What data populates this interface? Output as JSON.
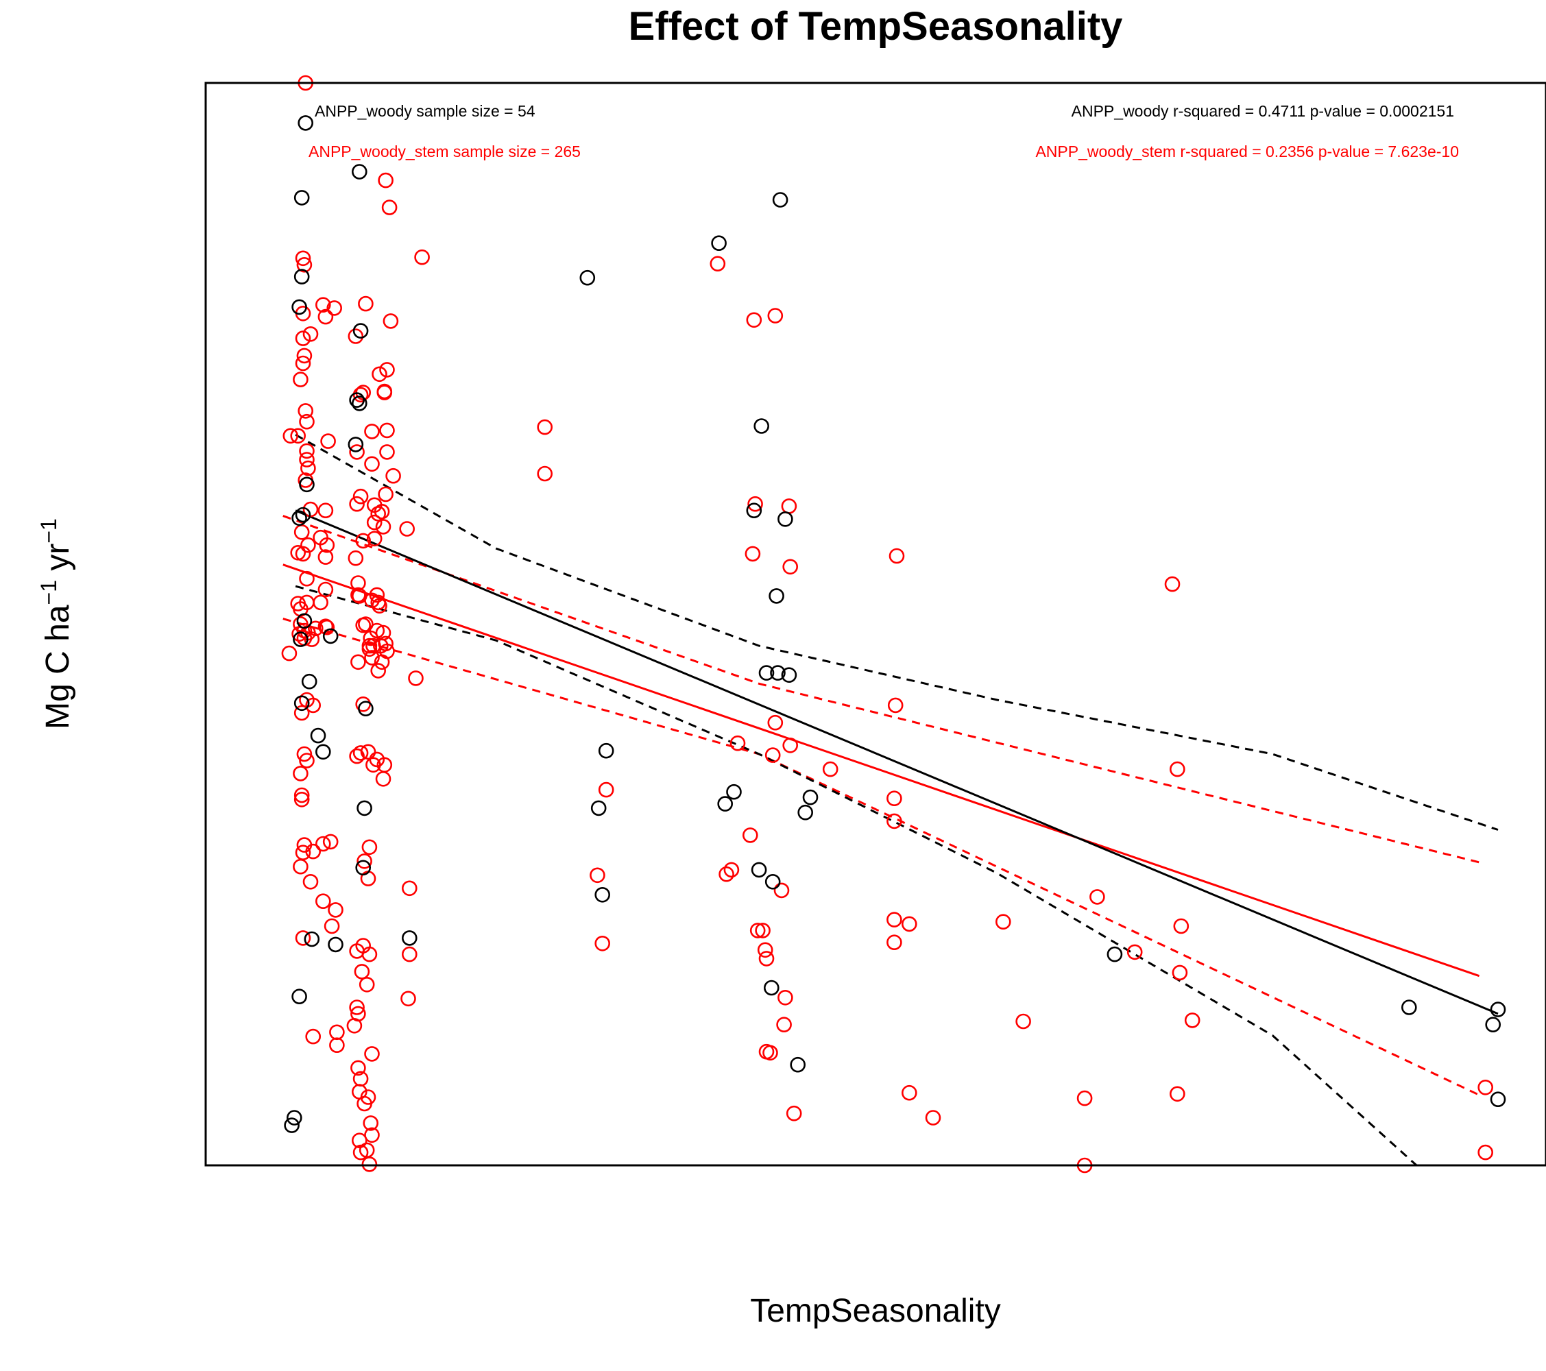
{
  "chart_data": {
    "type": "scatter",
    "title": "Effect of TempSeasonality",
    "xlabel": "TempSeasonality",
    "ylabel": {
      "main": "Mg C ha",
      "sup1": "−1",
      "mid": " yr",
      "sup2": "−1"
    },
    "x_range": [
      0,
      1
    ],
    "y_range": [
      0,
      1
    ],
    "axes_ticks_shown": false,
    "grid": false,
    "annotations": {
      "woody_sample": "ANPP_woody sample size = 54",
      "stem_sample": "ANPP_woody_stem sample size = 265",
      "woody_stats": "ANPP_woody r-squared =  0.4711 p-value =  0.0002151",
      "stem_stats": "ANPP_woody_stem r-squared =  0.2356 p-value =  7.623e-10"
    },
    "series": [
      {
        "name": "ANPP_woody",
        "color": "#000000",
        "n": 54,
        "r_squared": 0.4711,
        "p_value": 0.0002151,
        "fit_line": [
          [
            0.04,
            0.605
          ],
          [
            1.0,
            0.14
          ]
        ],
        "ci_upper": [
          [
            0.04,
            0.675
          ],
          [
            0.2,
            0.57
          ],
          [
            0.41,
            0.48
          ],
          [
            0.6,
            0.43
          ],
          [
            0.82,
            0.38
          ],
          [
            1.0,
            0.31
          ]
        ],
        "ci_lower": [
          [
            0.04,
            0.535
          ],
          [
            0.2,
            0.485
          ],
          [
            0.41,
            0.38
          ],
          [
            0.6,
            0.27
          ],
          [
            0.82,
            0.12
          ],
          [
            0.935,
            0.0
          ]
        ],
        "points": [
          [
            0.048,
            0.963
          ],
          [
            0.045,
            0.894
          ],
          [
            0.045,
            0.821
          ],
          [
            0.043,
            0.793
          ],
          [
            0.091,
            0.918
          ],
          [
            0.092,
            0.771
          ],
          [
            0.089,
            0.707
          ],
          [
            0.091,
            0.704
          ],
          [
            0.088,
            0.666
          ],
          [
            0.049,
            0.629
          ],
          [
            0.046,
            0.601
          ],
          [
            0.043,
            0.598
          ],
          [
            0.047,
            0.503
          ],
          [
            0.044,
            0.486
          ],
          [
            0.051,
            0.447
          ],
          [
            0.045,
            0.427
          ],
          [
            0.058,
            0.397
          ],
          [
            0.062,
            0.382
          ],
          [
            0.068,
            0.489
          ],
          [
            0.096,
            0.422
          ],
          [
            0.095,
            0.33
          ],
          [
            0.094,
            0.275
          ],
          [
            0.053,
            0.209
          ],
          [
            0.072,
            0.204
          ],
          [
            0.043,
            0.156
          ],
          [
            0.039,
            0.044
          ],
          [
            0.037,
            0.037
          ],
          [
            0.131,
            0.21
          ],
          [
            0.273,
            0.82
          ],
          [
            0.288,
            0.383
          ],
          [
            0.282,
            0.33
          ],
          [
            0.285,
            0.25
          ],
          [
            0.378,
            0.852
          ],
          [
            0.427,
            0.892
          ],
          [
            0.412,
            0.683
          ],
          [
            0.406,
            0.605
          ],
          [
            0.431,
            0.597
          ],
          [
            0.424,
            0.526
          ],
          [
            0.416,
            0.455
          ],
          [
            0.425,
            0.455
          ],
          [
            0.434,
            0.453
          ],
          [
            0.383,
            0.334
          ],
          [
            0.39,
            0.345
          ],
          [
            0.41,
            0.273
          ],
          [
            0.421,
            0.262
          ],
          [
            0.42,
            0.164
          ],
          [
            0.441,
            0.093
          ],
          [
            0.447,
            0.326
          ],
          [
            0.451,
            0.34
          ],
          [
            0.694,
            0.195
          ],
          [
            0.929,
            0.146
          ],
          [
            1.0,
            0.144
          ],
          [
            0.996,
            0.13
          ],
          [
            1.0,
            0.061
          ]
        ]
      },
      {
        "name": "ANPP_woody_stem",
        "color": "#ff0000",
        "n": 265,
        "r_squared": 0.2356,
        "p_value": 7.623e-10,
        "fit_line": [
          [
            0.03,
            0.555
          ],
          [
            0.985,
            0.175
          ]
        ],
        "ci_upper": [
          [
            0.03,
            0.6
          ],
          [
            0.41,
            0.445
          ],
          [
            0.985,
            0.28
          ]
        ],
        "ci_lower": [
          [
            0.03,
            0.505
          ],
          [
            0.41,
            0.38
          ],
          [
            0.985,
            0.065
          ]
        ],
        "points": [
          [
            0.048,
            1.0
          ],
          [
            0.112,
            0.91
          ],
          [
            0.115,
            0.885
          ],
          [
            0.141,
            0.839
          ],
          [
            0.046,
            0.838
          ],
          [
            0.047,
            0.832
          ],
          [
            0.062,
            0.795
          ],
          [
            0.071,
            0.792
          ],
          [
            0.096,
            0.796
          ],
          [
            0.046,
            0.787
          ],
          [
            0.064,
            0.784
          ],
          [
            0.046,
            0.764
          ],
          [
            0.052,
            0.768
          ],
          [
            0.088,
            0.766
          ],
          [
            0.047,
            0.748
          ],
          [
            0.046,
            0.741
          ],
          [
            0.107,
            0.731
          ],
          [
            0.044,
            0.726
          ],
          [
            0.094,
            0.714
          ],
          [
            0.092,
            0.712
          ],
          [
            0.048,
            0.697
          ],
          [
            0.049,
            0.687
          ],
          [
            0.036,
            0.674
          ],
          [
            0.042,
            0.674
          ],
          [
            0.066,
            0.669
          ],
          [
            0.089,
            0.659
          ],
          [
            0.101,
            0.648
          ],
          [
            0.049,
            0.66
          ],
          [
            0.049,
            0.652
          ],
          [
            0.05,
            0.644
          ],
          [
            0.048,
            0.633
          ],
          [
            0.092,
            0.618
          ],
          [
            0.103,
            0.61
          ],
          [
            0.052,
            0.606
          ],
          [
            0.064,
            0.605
          ],
          [
            0.089,
            0.611
          ],
          [
            0.103,
            0.594
          ],
          [
            0.129,
            0.588
          ],
          [
            0.045,
            0.585
          ],
          [
            0.06,
            0.58
          ],
          [
            0.05,
            0.573
          ],
          [
            0.065,
            0.573
          ],
          [
            0.094,
            0.577
          ],
          [
            0.103,
            0.579
          ],
          [
            0.042,
            0.566
          ],
          [
            0.046,
            0.565
          ],
          [
            0.064,
            0.562
          ],
          [
            0.088,
            0.561
          ],
          [
            0.049,
            0.542
          ],
          [
            0.09,
            0.538
          ],
          [
            0.09,
            0.527
          ],
          [
            0.064,
            0.532
          ],
          [
            0.042,
            0.519
          ],
          [
            0.049,
            0.52
          ],
          [
            0.06,
            0.52
          ],
          [
            0.044,
            0.514
          ],
          [
            0.101,
            0.522
          ],
          [
            0.091,
            0.526
          ],
          [
            0.106,
            0.52
          ],
          [
            0.044,
            0.5
          ],
          [
            0.047,
            0.494
          ],
          [
            0.05,
            0.492
          ],
          [
            0.056,
            0.496
          ],
          [
            0.064,
            0.498
          ],
          [
            0.065,
            0.497
          ],
          [
            0.094,
            0.499
          ],
          [
            0.1,
            0.487
          ],
          [
            0.043,
            0.491
          ],
          [
            0.047,
            0.487
          ],
          [
            0.053,
            0.486
          ],
          [
            0.101,
            0.469
          ],
          [
            0.096,
            0.5
          ],
          [
            0.099,
            0.48
          ],
          [
            0.099,
            0.477
          ],
          [
            0.09,
            0.465
          ],
          [
            0.102,
            0.48
          ],
          [
            0.108,
            0.48
          ],
          [
            0.035,
            0.473
          ],
          [
            0.136,
            0.45
          ],
          [
            0.049,
            0.43
          ],
          [
            0.054,
            0.425
          ],
          [
            0.045,
            0.418
          ],
          [
            0.094,
            0.426
          ],
          [
            0.089,
            0.378
          ],
          [
            0.098,
            0.382
          ],
          [
            0.102,
            0.37
          ],
          [
            0.047,
            0.38
          ],
          [
            0.049,
            0.374
          ],
          [
            0.044,
            0.362
          ],
          [
            0.045,
            0.342
          ],
          [
            0.045,
            0.338
          ],
          [
            0.046,
            0.289
          ],
          [
            0.047,
            0.296
          ],
          [
            0.054,
            0.29
          ],
          [
            0.044,
            0.276
          ],
          [
            0.062,
            0.297
          ],
          [
            0.068,
            0.299
          ],
          [
            0.052,
            0.262
          ],
          [
            0.095,
            0.281
          ],
          [
            0.099,
            0.294
          ],
          [
            0.098,
            0.265
          ],
          [
            0.062,
            0.244
          ],
          [
            0.072,
            0.236
          ],
          [
            0.069,
            0.221
          ],
          [
            0.046,
            0.21
          ],
          [
            0.094,
            0.203
          ],
          [
            0.089,
            0.198
          ],
          [
            0.099,
            0.195
          ],
          [
            0.093,
            0.179
          ],
          [
            0.097,
            0.167
          ],
          [
            0.089,
            0.146
          ],
          [
            0.09,
            0.14
          ],
          [
            0.087,
            0.129
          ],
          [
            0.054,
            0.119
          ],
          [
            0.073,
            0.123
          ],
          [
            0.073,
            0.111
          ],
          [
            0.101,
            0.103
          ],
          [
            0.09,
            0.09
          ],
          [
            0.092,
            0.08
          ],
          [
            0.095,
            0.057
          ],
          [
            0.098,
            0.063
          ],
          [
            0.091,
            0.068
          ],
          [
            0.1,
            0.039
          ],
          [
            0.101,
            0.028
          ],
          [
            0.091,
            0.023
          ],
          [
            0.092,
            0.012
          ],
          [
            0.097,
            0.014
          ],
          [
            0.099,
            0.001
          ],
          [
            0.131,
            0.256
          ],
          [
            0.131,
            0.195
          ],
          [
            0.13,
            0.154
          ],
          [
            0.113,
            0.735
          ],
          [
            0.111,
            0.715
          ],
          [
            0.111,
            0.714
          ],
          [
            0.116,
            0.78
          ],
          [
            0.113,
            0.679
          ],
          [
            0.113,
            0.659
          ],
          [
            0.118,
            0.637
          ],
          [
            0.101,
            0.678
          ],
          [
            0.112,
            0.62
          ],
          [
            0.109,
            0.604
          ],
          [
            0.106,
            0.602
          ],
          [
            0.11,
            0.59
          ],
          [
            0.105,
            0.527
          ],
          [
            0.107,
            0.517
          ],
          [
            0.105,
            0.494
          ],
          [
            0.11,
            0.492
          ],
          [
            0.109,
            0.465
          ],
          [
            0.112,
            0.482
          ],
          [
            0.113,
            0.475
          ],
          [
            0.106,
            0.457
          ],
          [
            0.092,
            0.381
          ],
          [
            0.105,
            0.375
          ],
          [
            0.111,
            0.37
          ],
          [
            0.11,
            0.357
          ],
          [
            0.239,
            0.682
          ],
          [
            0.239,
            0.639
          ],
          [
            0.288,
            0.347
          ],
          [
            0.281,
            0.268
          ],
          [
            0.285,
            0.205
          ],
          [
            0.377,
            0.833
          ],
          [
            0.406,
            0.781
          ],
          [
            0.423,
            0.785
          ],
          [
            0.407,
            0.611
          ],
          [
            0.405,
            0.565
          ],
          [
            0.434,
            0.609
          ],
          [
            0.435,
            0.553
          ],
          [
            0.423,
            0.409
          ],
          [
            0.435,
            0.388
          ],
          [
            0.393,
            0.39
          ],
          [
            0.421,
            0.379
          ],
          [
            0.467,
            0.366
          ],
          [
            0.403,
            0.305
          ],
          [
            0.388,
            0.273
          ],
          [
            0.384,
            0.269
          ],
          [
            0.428,
            0.254
          ],
          [
            0.409,
            0.217
          ],
          [
            0.413,
            0.217
          ],
          [
            0.415,
            0.199
          ],
          [
            0.416,
            0.191
          ],
          [
            0.431,
            0.155
          ],
          [
            0.43,
            0.13
          ],
          [
            0.416,
            0.105
          ],
          [
            0.419,
            0.104
          ],
          [
            0.438,
            0.048
          ],
          [
            0.52,
            0.563
          ],
          [
            0.519,
            0.425
          ],
          [
            0.518,
            0.339
          ],
          [
            0.518,
            0.318
          ],
          [
            0.518,
            0.227
          ],
          [
            0.518,
            0.206
          ],
          [
            0.53,
            0.223
          ],
          [
            0.53,
            0.067
          ],
          [
            0.549,
            0.044
          ],
          [
            0.605,
            0.225
          ],
          [
            0.621,
            0.133
          ],
          [
            0.67,
            0.062
          ],
          [
            0.68,
            0.248
          ],
          [
            0.71,
            0.197
          ],
          [
            0.74,
            0.537
          ],
          [
            0.744,
            0.366
          ],
          [
            0.747,
            0.221
          ],
          [
            0.746,
            0.178
          ],
          [
            0.756,
            0.134
          ],
          [
            0.744,
            0.066
          ],
          [
            0.99,
            0.072
          ],
          [
            0.99,
            0.012
          ],
          [
            0.67,
            0.0
          ]
        ]
      }
    ]
  }
}
